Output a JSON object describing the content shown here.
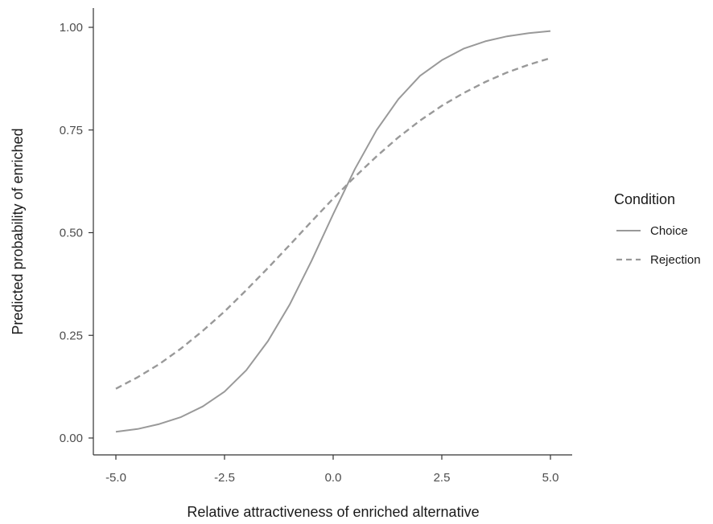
{
  "chart_data": {
    "type": "line",
    "xlabel": "Relative attractiveness of enriched alternative",
    "ylabel": "Predicted probability of enriched",
    "xlim": [
      -5.0,
      5.0
    ],
    "ylim": [
      0.0,
      1.0
    ],
    "x_ticks": [
      "-5.0",
      "-2.5",
      "0.0",
      "2.5",
      "5.0"
    ],
    "x_tick_values": [
      -5.0,
      -2.5,
      0.0,
      2.5,
      5.0
    ],
    "y_ticks": [
      "0.00",
      "0.25",
      "0.50",
      "0.75",
      "1.00"
    ],
    "y_tick_values": [
      0.0,
      0.25,
      0.5,
      0.75,
      1.0
    ],
    "grid": false,
    "legend": {
      "title": "Condition",
      "placement": "right"
    },
    "series": [
      {
        "name": "Choice",
        "style": "solid",
        "color": "#999999",
        "x": [
          -5.0,
          -4.5,
          -4.0,
          -3.5,
          -3.0,
          -2.5,
          -2.0,
          -1.5,
          -1.0,
          -0.5,
          0.0,
          0.5,
          1.0,
          1.5,
          2.0,
          2.5,
          3.0,
          3.5,
          4.0,
          4.5,
          5.0
        ],
        "y": [
          0.015,
          0.022,
          0.034,
          0.051,
          0.077,
          0.113,
          0.165,
          0.236,
          0.325,
          0.431,
          0.545,
          0.655,
          0.75,
          0.825,
          0.882,
          0.92,
          0.948,
          0.966,
          0.978,
          0.986,
          0.991
        ]
      },
      {
        "name": "Rejection",
        "style": "dashed",
        "color": "#999999",
        "x": [
          -5.0,
          -4.5,
          -4.0,
          -3.5,
          -3.0,
          -2.5,
          -2.0,
          -1.5,
          -1.0,
          -0.5,
          0.0,
          0.5,
          1.0,
          1.5,
          2.0,
          2.5,
          3.0,
          3.5,
          4.0,
          4.5,
          5.0
        ],
        "y": [
          0.12,
          0.148,
          0.18,
          0.218,
          0.261,
          0.308,
          0.36,
          0.414,
          0.47,
          0.527,
          0.583,
          0.636,
          0.686,
          0.732,
          0.773,
          0.809,
          0.84,
          0.867,
          0.89,
          0.909,
          0.925
        ]
      }
    ]
  }
}
